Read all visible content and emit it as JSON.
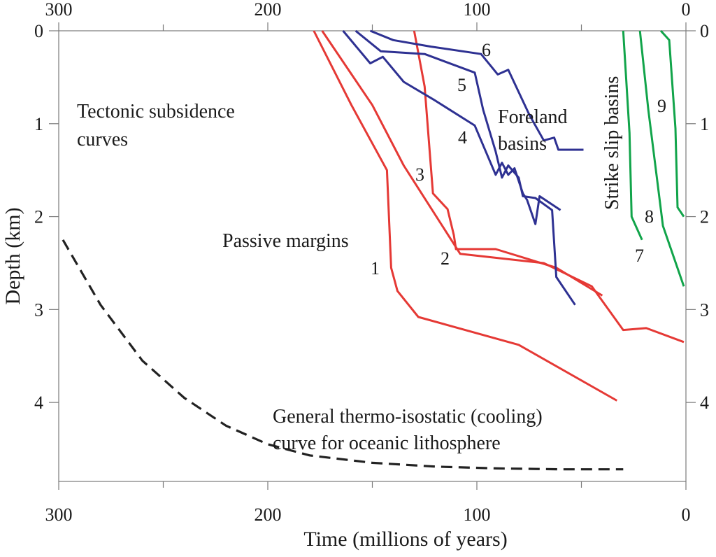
{
  "colors": {
    "passive_margin": "#e53935",
    "foreland": "#2e3192",
    "strike_slip": "#11a44a",
    "thermal": "#222222",
    "axis": "#7a7a7a"
  },
  "chart_data": {
    "type": "line",
    "xlabel": "Time (millions of years)",
    "ylabel": "Depth (km)",
    "xlim": [
      300,
      0
    ],
    "ylim": [
      0,
      4.85
    ],
    "x_reversed": true,
    "y_inverted": true,
    "x_ticks": [
      300,
      200,
      100,
      0
    ],
    "y_ticks": [
      0,
      1,
      2,
      3,
      4
    ],
    "grid": false,
    "annotations": {
      "tectonic_line1": "Tectonic subsidence",
      "tectonic_line2": "curves",
      "passive": "Passive margins",
      "foreland_line1": "Foreland",
      "foreland_line2": "basins",
      "strike_slip": "Strike slip basins",
      "thermal_line1": "General thermo-isostatic (cooling)",
      "thermal_line2": "curve for oceanic lithosphere"
    },
    "series": [
      {
        "name": "1",
        "group": "passive_margin",
        "points": [
          [
            178,
            0
          ],
          [
            160,
            0.8
          ],
          [
            143,
            1.5
          ],
          [
            141,
            2.55
          ],
          [
            138,
            2.8
          ],
          [
            128,
            3.08
          ],
          [
            80,
            3.38
          ],
          [
            33,
            3.98
          ]
        ]
      },
      {
        "name": "2",
        "group": "passive_margin",
        "points": [
          [
            174,
            0
          ],
          [
            150,
            0.8
          ],
          [
            135,
            1.45
          ],
          [
            108,
            2.4
          ],
          [
            68,
            2.5
          ],
          [
            45,
            2.75
          ],
          [
            30,
            3.22
          ],
          [
            19,
            3.2
          ],
          [
            1,
            3.35
          ]
        ]
      },
      {
        "name": "3",
        "group": "passive_margin",
        "points": [
          [
            130,
            0
          ],
          [
            125,
            0.6
          ],
          [
            121,
            1.75
          ],
          [
            114,
            1.92
          ],
          [
            111,
            2.2
          ],
          [
            110,
            2.35
          ],
          [
            101,
            2.35
          ],
          [
            91,
            2.35
          ],
          [
            62,
            2.55
          ],
          [
            40,
            2.85
          ]
        ]
      },
      {
        "name": "4",
        "group": "foreland",
        "points": [
          [
            164,
            0
          ],
          [
            151,
            0.35
          ],
          [
            145,
            0.28
          ],
          [
            135,
            0.55
          ],
          [
            120,
            0.75
          ],
          [
            101,
            1.02
          ],
          [
            91,
            1.55
          ],
          [
            88,
            1.42
          ],
          [
            85,
            1.55
          ],
          [
            82,
            1.48
          ],
          [
            78,
            1.75
          ],
          [
            76,
            1.82
          ],
          [
            72,
            2.08
          ],
          [
            70,
            1.78
          ],
          [
            60,
            1.93
          ]
        ]
      },
      {
        "name": "5",
        "group": "foreland",
        "points": [
          [
            158,
            0
          ],
          [
            146,
            0.22
          ],
          [
            125,
            0.25
          ],
          [
            101,
            0.45
          ],
          [
            97,
            0.85
          ],
          [
            91,
            1.3
          ],
          [
            88,
            1.58
          ],
          [
            85,
            1.45
          ],
          [
            80,
            1.58
          ],
          [
            78,
            1.78
          ],
          [
            72,
            1.8
          ],
          [
            64,
            1.93
          ],
          [
            62,
            2.65
          ],
          [
            53,
            2.95
          ]
        ]
      },
      {
        "name": "6",
        "group": "foreland",
        "points": [
          [
            151,
            0
          ],
          [
            140,
            0.1
          ],
          [
            122,
            0.17
          ],
          [
            98,
            0.25
          ],
          [
            90,
            0.47
          ],
          [
            85,
            0.42
          ],
          [
            75,
            0.9
          ],
          [
            68,
            1.18
          ],
          [
            63,
            1.15
          ],
          [
            61,
            1.28
          ],
          [
            49,
            1.28
          ]
        ]
      },
      {
        "name": "7",
        "group": "strike_slip",
        "points": [
          [
            30,
            0
          ],
          [
            27,
            1.1
          ],
          [
            26,
            2.0
          ],
          [
            21,
            2.25
          ]
        ]
      },
      {
        "name": "8",
        "group": "strike_slip",
        "points": [
          [
            22,
            0
          ],
          [
            18,
            0.85
          ],
          [
            11,
            2.1
          ],
          [
            1,
            2.75
          ]
        ]
      },
      {
        "name": "9",
        "group": "strike_slip",
        "points": [
          [
            12,
            0
          ],
          [
            8,
            0.1
          ],
          [
            5,
            1.05
          ],
          [
            4,
            1.9
          ],
          [
            1,
            2.0
          ]
        ]
      },
      {
        "name": "",
        "group": "thermal",
        "dashed": true,
        "points": [
          [
            298,
            2.25
          ],
          [
            280,
            2.95
          ],
          [
            260,
            3.55
          ],
          [
            240,
            3.95
          ],
          [
            220,
            4.25
          ],
          [
            200,
            4.45
          ],
          [
            180,
            4.57
          ],
          [
            150,
            4.65
          ],
          [
            120,
            4.69
          ],
          [
            90,
            4.71
          ],
          [
            60,
            4.72
          ],
          [
            30,
            4.72
          ]
        ]
      }
    ]
  }
}
